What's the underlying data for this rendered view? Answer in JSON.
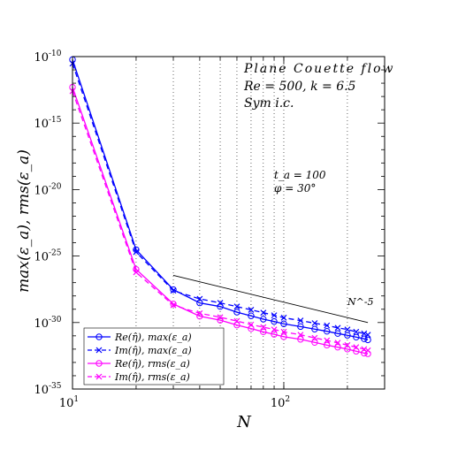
{
  "chart_data": {
    "type": "line",
    "xscale": "log",
    "yscale": "log",
    "xlim": [
      10,
      300
    ],
    "ylim": [
      1e-35,
      1e-10
    ],
    "xlabel": "N",
    "ylabel": "max(ε_a), rms(ε_a)",
    "grid": "dotted vertical at log minor ticks",
    "x_tick_labels": [
      {
        "base": "10",
        "exp": "1"
      },
      {
        "base": "10",
        "exp": "2"
      }
    ],
    "y_tick_labels": [
      {
        "base": "10",
        "exp": "-10"
      },
      {
        "base": "10",
        "exp": "-15"
      },
      {
        "base": "10",
        "exp": "-20"
      },
      {
        "base": "10",
        "exp": "-25"
      },
      {
        "base": "10",
        "exp": "-30"
      },
      {
        "base": "10",
        "exp": "-35"
      }
    ],
    "annotations": {
      "title_lines": [
        "Plane Couette flow",
        "Re = 500,  k = 6.5",
        "Sym i.c."
      ],
      "param_t": "t_a = 100",
      "param_phi": "φ = 30°",
      "reference_label": "N^-5"
    },
    "reference_line": {
      "x": [
        30,
        250
      ],
      "y": [
        3.5e-27,
        1e-30
      ]
    },
    "legend_position": "bottom-left",
    "series": [
      {
        "name": "Re(η̂), max(ε_a)",
        "color": "#0000ff",
        "dash": "solid",
        "marker": "o",
        "x": [
          10,
          20,
          30,
          40,
          50,
          60,
          70,
          80,
          90,
          100,
          120,
          140,
          160,
          180,
          200,
          220,
          240,
          250
        ],
        "y": [
          6e-11,
          3e-25,
          3e-28,
          3e-29,
          1.6e-29,
          6e-30,
          3.2e-30,
          1.8e-30,
          1.2e-30,
          8e-31,
          5e-31,
          3.2e-31,
          2.2e-31,
          1.5e-31,
          1.1e-31,
          8e-32,
          6e-32,
          5e-32
        ]
      },
      {
        "name": "Im(η̂), max(ε_a)",
        "color": "#0000ff",
        "dash": "dashed",
        "marker": "x",
        "x": [
          10,
          20,
          30,
          40,
          50,
          60,
          70,
          80,
          90,
          100,
          120,
          140,
          160,
          180,
          200,
          220,
          240,
          250
        ],
        "y": [
          3e-11,
          2e-25,
          2.5e-28,
          6e-29,
          3e-29,
          1.6e-29,
          9e-30,
          5.5e-30,
          3.5e-30,
          2.3e-30,
          1.4e-30,
          9e-31,
          6e-31,
          4e-31,
          3e-31,
          2e-31,
          1.5e-31,
          1.2e-31
        ]
      },
      {
        "name": "Re(η̂), rms(ε_a)",
        "color": "#ff00ff",
        "dash": "solid",
        "marker": "o",
        "x": [
          10,
          20,
          30,
          40,
          50,
          60,
          70,
          80,
          90,
          100,
          120,
          140,
          160,
          180,
          200,
          220,
          240,
          250
        ],
        "y": [
          5e-13,
          1e-26,
          2.5e-29,
          3e-30,
          1.5e-30,
          6.5e-31,
          3.5e-31,
          2e-31,
          1.3e-31,
          8.5e-32,
          5.5e-32,
          3.2e-32,
          2e-32,
          1.4e-32,
          1e-32,
          7e-33,
          5e-33,
          4.5e-33
        ]
      },
      {
        "name": "Im(η̂), rms(ε_a)",
        "color": "#ff00ff",
        "dash": "dashed",
        "marker": "x",
        "x": [
          10,
          20,
          30,
          40,
          50,
          60,
          70,
          80,
          90,
          100,
          120,
          140,
          160,
          180,
          200,
          220,
          240,
          250
        ],
        "y": [
          2.5e-13,
          6e-27,
          2e-29,
          5e-30,
          2.5e-30,
          1.3e-30,
          7e-31,
          4.5e-31,
          3e-31,
          2e-31,
          1.2e-31,
          7e-32,
          4.5e-32,
          3e-32,
          2e-32,
          1.4e-32,
          1e-32,
          8e-33
        ]
      }
    ]
  }
}
